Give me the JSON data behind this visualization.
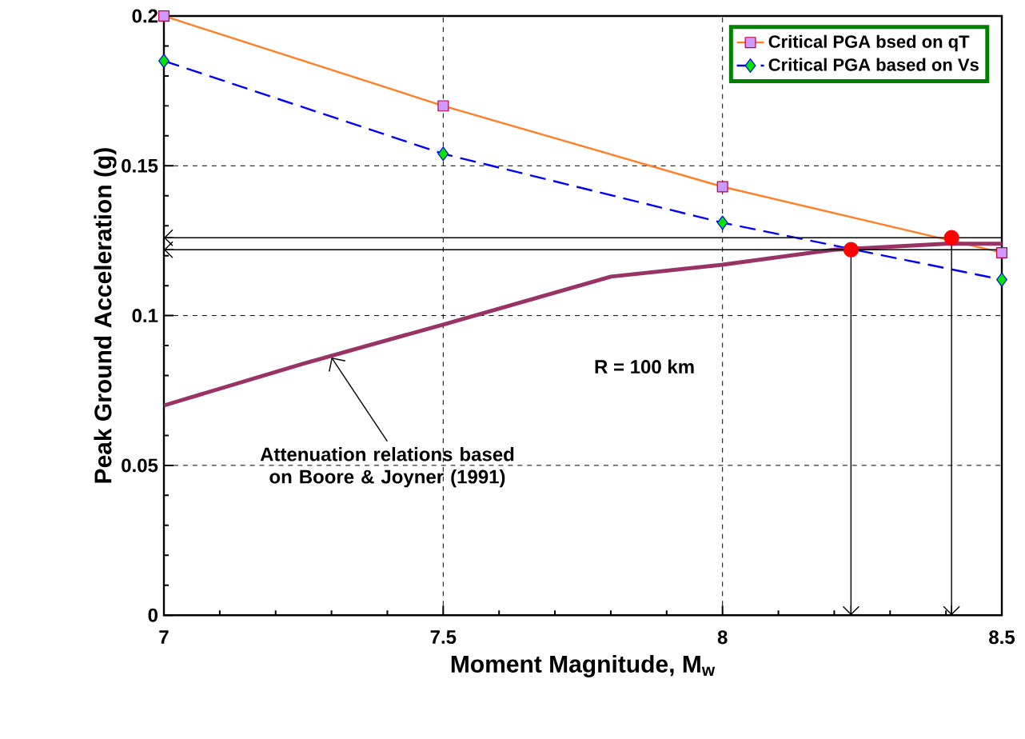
{
  "chart_data": {
    "type": "line",
    "xlabel": "Moment Magnitude, M$_{w}$",
    "ylabel": "Peak Ground Acceleration (g)",
    "x": [
      7,
      7.5,
      8,
      8.5
    ],
    "series": [
      {
        "name": "Critical PGA bsed on qT",
        "color": "#ff7f27",
        "values": [
          0.2,
          0.17,
          0.143,
          0.121
        ],
        "marker": "square",
        "line_style": "solid"
      },
      {
        "name": "Critical PGA based on Vs",
        "color": "#0000ff",
        "values": [
          0.185,
          0.154,
          0.131,
          0.112
        ],
        "marker": "diamond",
        "line_style": "dashed"
      },
      {
        "type": "line",
        "color": "#993366",
        "x": [
          7,
          7.25,
          7.5,
          7.8,
          8,
          8.2,
          8.4,
          8.5
        ],
        "values": [
          0.07,
          0.084,
          0.097,
          0.113,
          0.117,
          0.122,
          0.124,
          0.124
        ],
        "marker": "none",
        "line_style": "solid"
      },
      {
        "type": "lollipop",
        "color": "#ff0000",
        "x": [
          8.23,
          8.41
        ],
        "values": [
          0.122,
          0.126
        ],
        "marker": "circle"
      }
    ],
    "annotations": [
      "R = 100 km",
      {
        "text": "Attenuation relations based on Boore & Joyner (1991)",
        "x": 7.3,
        "y": 0.086
      }
    ],
    "xlim": [
      7,
      8.5
    ],
    "xticks": [
      7,
      7.5,
      8,
      8.5
    ],
    "ylim": [
      0,
      0.2
    ],
    "yticks": [
      0,
      0.05,
      0.1,
      0.15,
      0.2
    ],
    "ref_lines": [
      {
        "axis": "y",
        "value": 0.122,
        "color": "#000000"
      },
      {
        "axis": "y",
        "value": 0.126,
        "color": "#000000"
      }
    ],
    "grid": true,
    "legend": "top right"
  }
}
